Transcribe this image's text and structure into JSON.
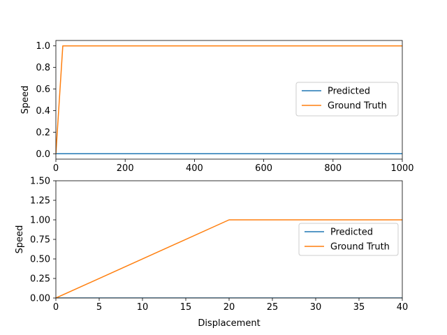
{
  "chart_data": [
    {
      "type": "line",
      "title": "",
      "xlabel": "",
      "ylabel": "Speed",
      "xlim": [
        0,
        1000
      ],
      "ylim": [
        -0.05,
        1.05
      ],
      "xticks": [
        0,
        200,
        400,
        600,
        800,
        1000
      ],
      "xtick_labels": [
        "0",
        "200",
        "400",
        "600",
        "800",
        "1000"
      ],
      "yticks": [
        0.0,
        0.2,
        0.4,
        0.6,
        0.8,
        1.0
      ],
      "ytick_labels": [
        "0.0",
        "0.2",
        "0.4",
        "0.6",
        "0.8",
        "1.0"
      ],
      "grid": false,
      "legend_position": "center-right",
      "series": [
        {
          "name": "Predicted",
          "color": "#1f77b4",
          "x": [
            0,
            1000
          ],
          "y": [
            0,
            0
          ]
        },
        {
          "name": "Ground Truth",
          "color": "#ff7f0e",
          "x": [
            0,
            20,
            1000
          ],
          "y": [
            0,
            1,
            1
          ]
        }
      ]
    },
    {
      "type": "line",
      "title": "",
      "xlabel": "Displacement",
      "ylabel": "Speed",
      "xlim": [
        0,
        40
      ],
      "ylim": [
        0,
        1.5
      ],
      "xticks": [
        0,
        5,
        10,
        15,
        20,
        25,
        30,
        35,
        40
      ],
      "xtick_labels": [
        "0",
        "5",
        "10",
        "15",
        "20",
        "25",
        "30",
        "35",
        "40"
      ],
      "yticks": [
        0.0,
        0.25,
        0.5,
        0.75,
        1.0,
        1.25,
        1.5
      ],
      "ytick_labels": [
        "0.00",
        "0.25",
        "0.50",
        "0.75",
        "1.00",
        "1.25",
        "1.50"
      ],
      "grid": false,
      "legend_position": "center-right",
      "series": [
        {
          "name": "Predicted",
          "color": "#1f77b4",
          "x": [
            0,
            40
          ],
          "y": [
            0,
            0
          ]
        },
        {
          "name": "Ground Truth",
          "color": "#ff7f0e",
          "x": [
            0,
            20,
            40
          ],
          "y": [
            0,
            1,
            1
          ]
        }
      ]
    }
  ]
}
